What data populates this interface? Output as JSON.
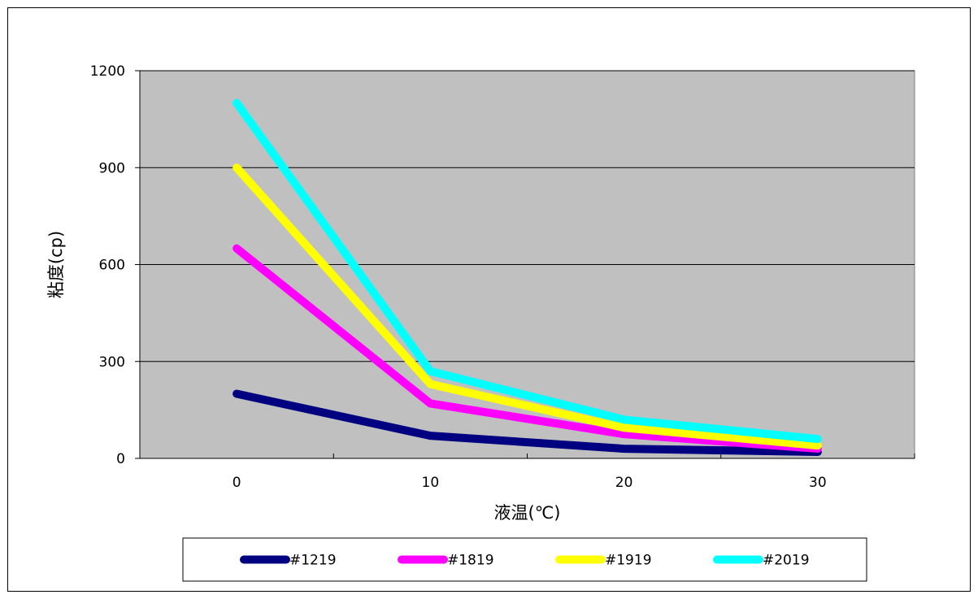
{
  "chart_data": {
    "type": "line",
    "title": "",
    "xlabel": "液温(℃)",
    "ylabel": "粘度(cp)",
    "x": [
      0,
      10,
      20,
      30
    ],
    "x_tick_labels": [
      "0",
      "10",
      "20",
      "30"
    ],
    "ylim": [
      0,
      1200
    ],
    "y_ticks": [
      0,
      300,
      600,
      900,
      1200
    ],
    "y_tick_labels": [
      "0",
      "300",
      "600",
      "900",
      "1200"
    ],
    "grid": "horizontal",
    "plot_background": "#c0c0c0",
    "legend_position": "bottom",
    "series": [
      {
        "name": "#1219",
        "color": "#000080",
        "values": [
          200,
          70,
          30,
          20
        ]
      },
      {
        "name": "#1819",
        "color": "#ff00ff",
        "values": [
          650,
          170,
          75,
          30
        ]
      },
      {
        "name": "#1919",
        "color": "#ffff00",
        "values": [
          900,
          230,
          95,
          40
        ]
      },
      {
        "name": "#2019",
        "color": "#00ffff",
        "values": [
          1100,
          270,
          120,
          60
        ]
      }
    ]
  }
}
